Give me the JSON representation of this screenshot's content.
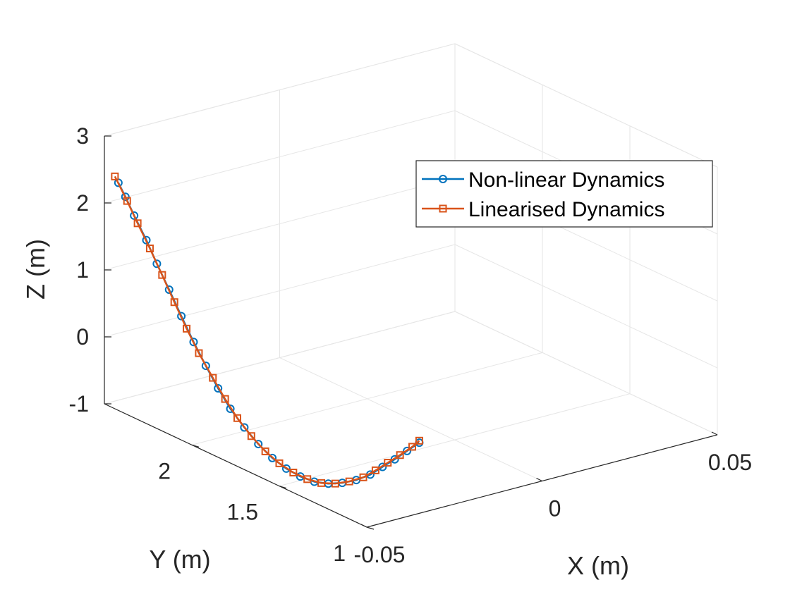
{
  "chart_data": {
    "type": "line3d",
    "xlabel": "X (m)",
    "ylabel": "Y (m)",
    "zlabel": "Z (m)",
    "xlim": [
      -0.05,
      0.05
    ],
    "ylim": [
      1,
      2.5
    ],
    "zlim": [
      -1,
      3
    ],
    "xticks": [
      "-0.05",
      "0",
      "0.05"
    ],
    "yticks": [
      "1",
      "1.5",
      "2"
    ],
    "zticks": [
      "-1",
      "0",
      "1",
      "2",
      "3"
    ],
    "grid": true,
    "legend_position": "upper-right",
    "series": [
      {
        "name": "Non-linear Dynamics",
        "color": "#0072BD",
        "marker": "circle",
        "points": [
          {
            "x": -0.05,
            "y": 2.42,
            "z": 2.4
          },
          {
            "x": -0.05,
            "y": 2.38,
            "z": 2.24
          },
          {
            "x": -0.05,
            "y": 2.33,
            "z": 2.02
          },
          {
            "x": -0.05,
            "y": 2.26,
            "z": 1.74
          },
          {
            "x": -0.05,
            "y": 2.2,
            "z": 1.46
          },
          {
            "x": -0.05,
            "y": 2.13,
            "z": 1.16
          },
          {
            "x": -0.05,
            "y": 2.06,
            "z": 0.85
          },
          {
            "x": -0.05,
            "y": 1.99,
            "z": 0.55
          },
          {
            "x": -0.05,
            "y": 1.92,
            "z": 0.28
          },
          {
            "x": -0.05,
            "y": 1.85,
            "z": 0.03
          },
          {
            "x": -0.05,
            "y": 1.78,
            "z": -0.19
          },
          {
            "x": -0.05,
            "y": 1.7,
            "z": -0.37
          },
          {
            "x": -0.05,
            "y": 1.62,
            "z": -0.52
          },
          {
            "x": -0.05,
            "y": 1.54,
            "z": -0.63
          },
          {
            "x": -0.05,
            "y": 1.46,
            "z": -0.69
          },
          {
            "x": -0.05,
            "y": 1.38,
            "z": -0.71
          },
          {
            "x": -0.05,
            "y": 1.3,
            "z": -0.69
          },
          {
            "x": -0.05,
            "y": 1.22,
            "z": -0.62
          },
          {
            "x": -0.05,
            "y": 1.14,
            "z": -0.51
          },
          {
            "x": -0.05,
            "y": 1.06,
            "z": -0.37
          },
          {
            "x": -0.05,
            "y": 0.98,
            "z": -0.19
          },
          {
            "x": -0.05,
            "y": 0.91,
            "z": 0.01
          },
          {
            "x": -0.05,
            "y": 0.84,
            "z": 0.21
          },
          {
            "x": -0.05,
            "y": 0.77,
            "z": 0.42
          },
          {
            "x": -0.05,
            "y": 0.7,
            "z": 0.63
          }
        ]
      },
      {
        "name": "Linearised Dynamics",
        "color": "#D95319",
        "marker": "square",
        "points": [
          {
            "x": -0.05,
            "y": 2.44,
            "z": 2.47
          },
          {
            "x": -0.05,
            "y": 2.37,
            "z": 2.19
          },
          {
            "x": -0.05,
            "y": 2.31,
            "z": 1.93
          },
          {
            "x": -0.05,
            "y": 2.24,
            "z": 1.64
          },
          {
            "x": -0.05,
            "y": 2.17,
            "z": 1.33
          },
          {
            "x": -0.05,
            "y": 2.1,
            "z": 1.01
          },
          {
            "x": -0.05,
            "y": 2.03,
            "z": 0.7
          },
          {
            "x": -0.05,
            "y": 1.96,
            "z": 0.42
          },
          {
            "x": -0.05,
            "y": 1.88,
            "z": 0.15
          },
          {
            "x": -0.05,
            "y": 1.81,
            "z": -0.08
          },
          {
            "x": -0.05,
            "y": 1.74,
            "z": -0.28
          },
          {
            "x": -0.05,
            "y": 1.66,
            "z": -0.45
          },
          {
            "x": -0.05,
            "y": 1.58,
            "z": -0.58
          },
          {
            "x": -0.05,
            "y": 1.5,
            "z": -0.66
          },
          {
            "x": -0.05,
            "y": 1.42,
            "z": -0.7
          },
          {
            "x": -0.05,
            "y": 1.34,
            "z": -0.7
          },
          {
            "x": -0.05,
            "y": 1.26,
            "z": -0.66
          },
          {
            "x": -0.05,
            "y": 1.18,
            "z": -0.57
          },
          {
            "x": -0.05,
            "y": 1.1,
            "z": -0.44
          },
          {
            "x": -0.05,
            "y": 1.02,
            "z": -0.28
          },
          {
            "x": -0.05,
            "y": 0.95,
            "z": -0.09
          },
          {
            "x": -0.05,
            "y": 0.88,
            "z": 0.11
          },
          {
            "x": -0.05,
            "y": 0.81,
            "z": 0.31
          },
          {
            "x": -0.05,
            "y": 0.74,
            "z": 0.52
          },
          {
            "x": -0.05,
            "y": 0.7,
            "z": 0.66
          }
        ]
      }
    ]
  }
}
